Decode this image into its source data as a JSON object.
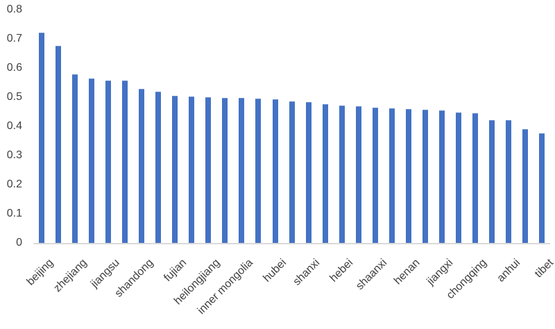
{
  "chart_data": {
    "type": "bar",
    "title": "",
    "xlabel": "",
    "ylabel": "",
    "ylim": [
      0,
      0.8
    ],
    "yticks": [
      0,
      0.1,
      0.2,
      0.3,
      0.4,
      0.5,
      0.6,
      0.7,
      0.8
    ],
    "ytick_labels": [
      "0",
      "0.1",
      "0.2",
      "0.3",
      "0.4",
      "0.5",
      "0.6",
      "0.7",
      "0.8"
    ],
    "grid": false,
    "legend_position": "none",
    "bar_color": "#4472C4",
    "axis_line_color": "#D9D9D9",
    "text_color": "#404040",
    "categories": [
      "beijing",
      "",
      "zhejiang",
      "",
      "jiangsu",
      "",
      "shandong",
      "",
      "fujian",
      "",
      "heilongjiang",
      "",
      "inner mongolia",
      "",
      "hubei",
      "",
      "shanxi",
      "",
      "hebei",
      "",
      "shaanxi",
      "",
      "henan",
      "",
      "jiangxi",
      "",
      "chongqing",
      "",
      "anhui",
      "",
      "tibet"
    ],
    "values": [
      0.72,
      0.674,
      0.576,
      0.562,
      0.556,
      0.555,
      0.527,
      0.517,
      0.503,
      0.499,
      0.498,
      0.496,
      0.495,
      0.492,
      0.491,
      0.484,
      0.48,
      0.473,
      0.47,
      0.466,
      0.463,
      0.46,
      0.457,
      0.456,
      0.452,
      0.445,
      0.442,
      0.42,
      0.418,
      0.389,
      0.374
    ]
  }
}
